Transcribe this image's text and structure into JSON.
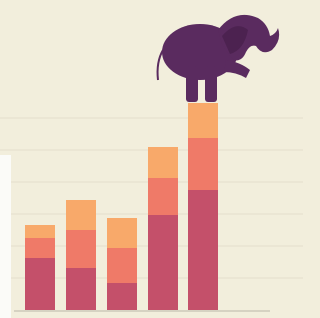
{
  "chart_data": {
    "type": "bar",
    "stacked": true,
    "series": [
      {
        "color": "#c4506a",
        "values": [
          52,
          42,
          27,
          95,
          120
        ]
      },
      {
        "color": "#ef7a68",
        "values": [
          20,
          38,
          35,
          37,
          52
        ]
      },
      {
        "color": "#f8a96a",
        "values": [
          13,
          30,
          30,
          31,
          35
        ]
      }
    ],
    "ylim": [
      0,
      310
    ]
  }
}
